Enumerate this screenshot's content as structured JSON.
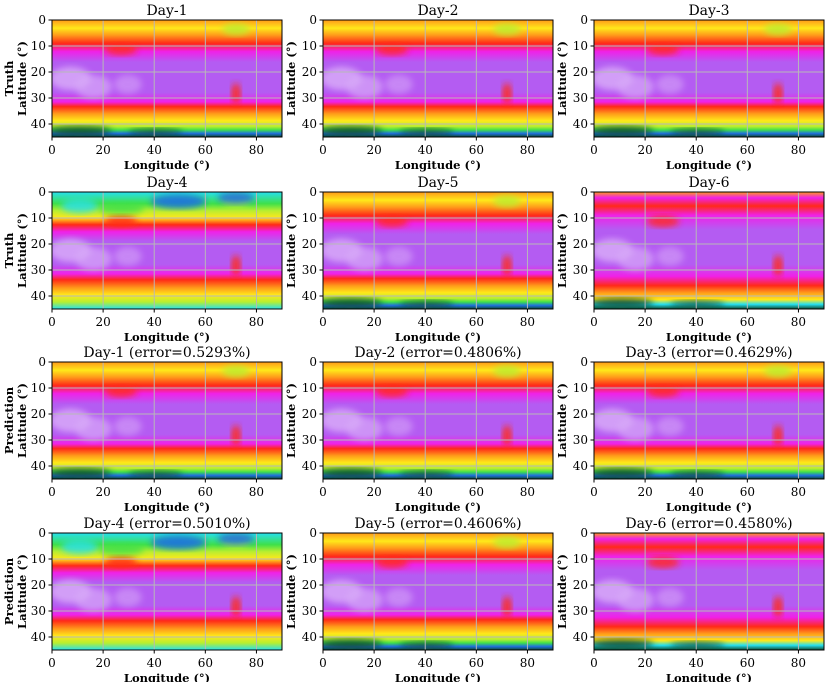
{
  "figure": {
    "row_labels": [
      "Truth",
      "Truth",
      "Prediction",
      "Prediction"
    ],
    "colors": {
      "deep": "#0b4a2e",
      "blue": "#1f6fe0",
      "cyan": "#26e0f0",
      "green": "#3fe04a",
      "yellowgreen": "#b8ee30",
      "yellow": "#ffe81a",
      "orange": "#ff9a1a",
      "red": "#ff2a18",
      "magenta": "#f021e8",
      "purple": "#b45cf2",
      "lavender": "#d8aaf8",
      "grid": "#b8b8b8"
    }
  },
  "chart_data": [
    {
      "type": "heatmap",
      "row": "Truth",
      "title": "Day-1",
      "xlabel": "Longitude (°)",
      "ylabel": "Latitude (°)",
      "xlim": [
        0,
        90
      ],
      "ylim": [
        45,
        0
      ],
      "xticks": [
        "0",
        "20",
        "40",
        "60",
        "80"
      ],
      "yticks": [
        "0",
        "10",
        "20",
        "30",
        "40"
      ],
      "grid": true,
      "error": null
    },
    {
      "type": "heatmap",
      "row": "Truth",
      "title": "Day-2",
      "xlabel": "Longitude (°)",
      "ylabel": "Latitude (°)",
      "xlim": [
        0,
        90
      ],
      "ylim": [
        45,
        0
      ],
      "xticks": [
        "0",
        "20",
        "40",
        "60",
        "80"
      ],
      "yticks": [
        "0",
        "10",
        "20",
        "30",
        "40"
      ],
      "grid": true,
      "error": null
    },
    {
      "type": "heatmap",
      "row": "Truth",
      "title": "Day-3",
      "xlabel": "Longitude (°)",
      "ylabel": "Latitude (°)",
      "xlim": [
        0,
        90
      ],
      "ylim": [
        45,
        0
      ],
      "xticks": [
        "0",
        "20",
        "40",
        "60",
        "80"
      ],
      "yticks": [
        "0",
        "10",
        "20",
        "30",
        "40"
      ],
      "grid": true,
      "error": null
    },
    {
      "type": "heatmap",
      "row": "Truth",
      "title": "Day-4",
      "xlabel": "Longitude (°)",
      "ylabel": "Latitude (°)",
      "xlim": [
        0,
        90
      ],
      "ylim": [
        45,
        0
      ],
      "xticks": [
        "0",
        "20",
        "40",
        "60",
        "80"
      ],
      "yticks": [
        "0",
        "10",
        "20",
        "30",
        "40"
      ],
      "grid": true,
      "error": null
    },
    {
      "type": "heatmap",
      "row": "Truth",
      "title": "Day-5",
      "xlabel": "Longitude (°)",
      "ylabel": "Latitude (°)",
      "xlim": [
        0,
        90
      ],
      "ylim": [
        45,
        0
      ],
      "xticks": [
        "0",
        "20",
        "40",
        "60",
        "80"
      ],
      "yticks": [
        "0",
        "10",
        "20",
        "30",
        "40"
      ],
      "grid": true,
      "error": null
    },
    {
      "type": "heatmap",
      "row": "Truth",
      "title": "Day-6",
      "xlabel": "Longitude (°)",
      "ylabel": "Latitude (°)",
      "xlim": [
        0,
        90
      ],
      "ylim": [
        45,
        0
      ],
      "xticks": [
        "0",
        "20",
        "40",
        "60",
        "80"
      ],
      "yticks": [
        "0",
        "10",
        "20",
        "30",
        "40"
      ],
      "grid": true,
      "error": null
    },
    {
      "type": "heatmap",
      "row": "Prediction",
      "title": "Day-1 (error=0.5293%)",
      "xlabel": "Longitude (°)",
      "ylabel": "Latitude (°)",
      "xlim": [
        0,
        90
      ],
      "ylim": [
        45,
        0
      ],
      "xticks": [
        "0",
        "20",
        "40",
        "60",
        "80"
      ],
      "yticks": [
        "0",
        "10",
        "20",
        "30",
        "40"
      ],
      "grid": true,
      "error": 0.5293
    },
    {
      "type": "heatmap",
      "row": "Prediction",
      "title": "Day-2 (error=0.4806%)",
      "xlabel": "Longitude (°)",
      "ylabel": "Latitude (°)",
      "xlim": [
        0,
        90
      ],
      "ylim": [
        45,
        0
      ],
      "xticks": [
        "0",
        "20",
        "40",
        "60",
        "80"
      ],
      "yticks": [
        "0",
        "10",
        "20",
        "30",
        "40"
      ],
      "grid": true,
      "error": 0.4806
    },
    {
      "type": "heatmap",
      "row": "Prediction",
      "title": "Day-3 (error=0.4629%)",
      "xlabel": "Longitude (°)",
      "ylabel": "Latitude (°)",
      "xlim": [
        0,
        90
      ],
      "ylim": [
        45,
        0
      ],
      "xticks": [
        "0",
        "20",
        "40",
        "60",
        "80"
      ],
      "yticks": [
        "0",
        "10",
        "20",
        "30",
        "40"
      ],
      "grid": true,
      "error": 0.4629
    },
    {
      "type": "heatmap",
      "row": "Prediction",
      "title": "Day-4 (error=0.5010%)",
      "xlabel": "Longitude (°)",
      "ylabel": "Latitude (°)",
      "xlim": [
        0,
        90
      ],
      "ylim": [
        45,
        0
      ],
      "xticks": [
        "0",
        "20",
        "40",
        "60",
        "80"
      ],
      "yticks": [
        "0",
        "10",
        "20",
        "30",
        "40"
      ],
      "grid": true,
      "error": 0.501
    },
    {
      "type": "heatmap",
      "row": "Prediction",
      "title": "Day-5 (error=0.4606%)",
      "xlabel": "Longitude (°)",
      "ylabel": "Latitude (°)",
      "xlim": [
        0,
        90
      ],
      "ylim": [
        45,
        0
      ],
      "xticks": [
        "0",
        "20",
        "40",
        "60",
        "80"
      ],
      "yticks": [
        "0",
        "10",
        "20",
        "30",
        "40"
      ],
      "grid": true,
      "error": 0.4606
    },
    {
      "type": "heatmap",
      "row": "Prediction",
      "title": "Day-6 (error=0.4580%)",
      "xlabel": "Longitude (°)",
      "ylabel": "Latitude (°)",
      "xlim": [
        0,
        90
      ],
      "ylim": [
        45,
        0
      ],
      "xticks": [
        "0",
        "20",
        "40",
        "60",
        "80"
      ],
      "yticks": [
        "0",
        "10",
        "20",
        "30",
        "40"
      ],
      "grid": true,
      "error": 0.458
    }
  ]
}
